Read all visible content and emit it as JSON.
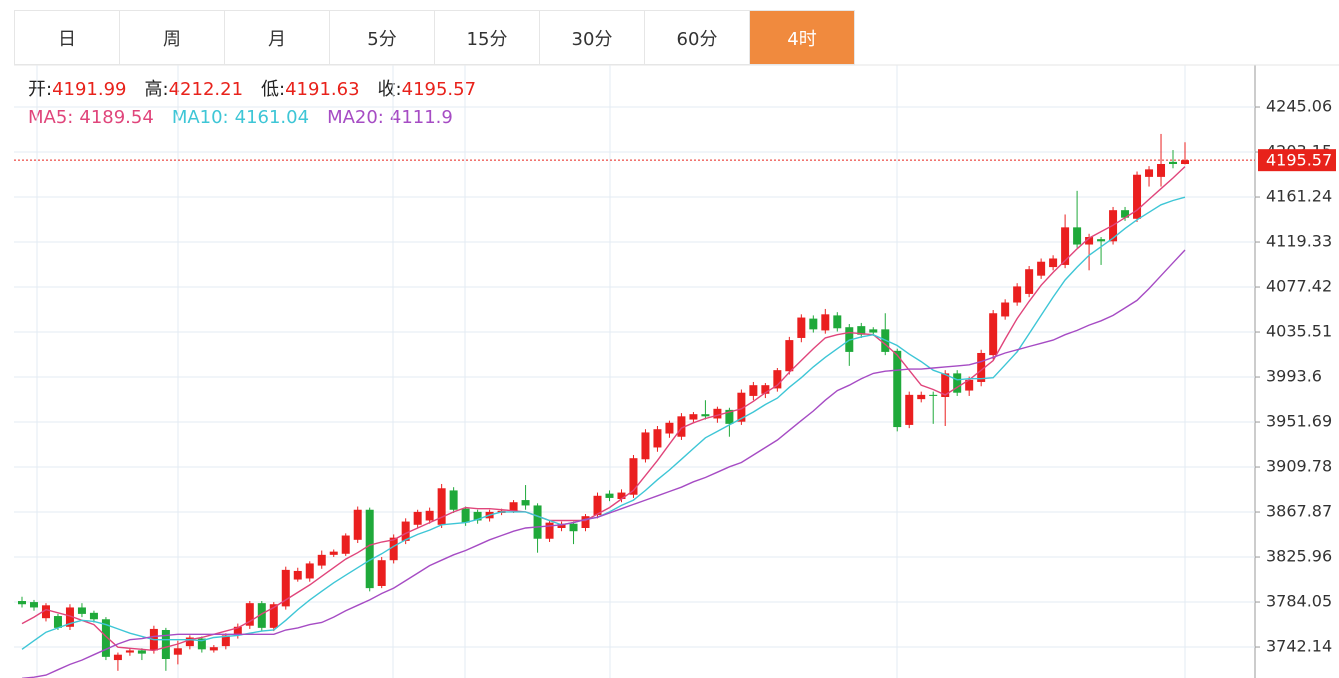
{
  "tabs": [
    "日",
    "周",
    "月",
    "5分",
    "15分",
    "30分",
    "60分",
    "4时"
  ],
  "active_tab": 7,
  "chart_data": {
    "type": "candlestick",
    "ohlc_labels": [
      "开:",
      "高:",
      "低:",
      "收:"
    ],
    "open": [
      3785,
      3784,
      3769,
      3771,
      3761,
      3779,
      3774,
      3768,
      3730,
      3737,
      3739,
      3739,
      3758,
      3735,
      3743,
      3750,
      3739,
      3743,
      3753,
      3762,
      3783,
      3760,
      3780,
      3805,
      3806,
      3818,
      3828,
      3829,
      3842,
      3870,
      3799,
      3823,
      3841,
      3856,
      3860,
      3856,
      3888,
      3871,
      3868,
      3862,
      3867,
      3869,
      3879,
      3874,
      3843,
      3853,
      3857,
      3853,
      3865,
      3885,
      3880,
      3884,
      3917,
      3928,
      3941,
      3938,
      3954,
      3959,
      3955,
      3963,
      3952,
      3976,
      3978,
      3983,
      3999,
      4030,
      4048,
      4037,
      4051,
      4040,
      4041,
      4038,
      4038,
      4018,
      3949,
      3973,
      3977,
      3975,
      3997,
      3981,
      3989,
      4014,
      4050,
      4063,
      4071,
      4088,
      4096,
      4098,
      4133,
      4117,
      4122,
      4120,
      4149,
      4141,
      4180,
      4180,
      4194,
      4191.99
    ],
    "high": [
      3789,
      3786,
      3783,
      3773,
      3782,
      3783,
      3776,
      3770,
      3737,
      3741,
      3741,
      3762,
      3760,
      3748,
      3753,
      3752,
      3744,
      3755,
      3764,
      3785,
      3785,
      3784,
      3817,
      3816,
      3822,
      3832,
      3833,
      3848,
      3873,
      3872,
      3826,
      3847,
      3862,
      3870,
      3872,
      3894,
      3891,
      3873,
      3870,
      3870,
      3871,
      3879,
      3893,
      3876,
      3860,
      3859,
      3859,
      3866,
      3886,
      3888,
      3889,
      3921,
      3945,
      3948,
      3953,
      3960,
      3961,
      3972,
      3966,
      3965,
      3982,
      3989,
      3988,
      4002,
      4031,
      4052,
      4051,
      4057,
      4054,
      4043,
      4044,
      4040,
      4053,
      4020,
      3980,
      3980,
      3980,
      4000,
      4000,
      3994,
      4019,
      4056,
      4066,
      4081,
      4097,
      4104,
      4107,
      4145,
      4167,
      4127,
      4124,
      4152,
      4152,
      4185,
      4190,
      4220,
      4205,
      4212.21
    ],
    "low": [
      3779,
      3776,
      3766,
      3758,
      3758,
      3770,
      3765,
      3730,
      3720,
      3734,
      3730,
      3736,
      3720,
      3726,
      3740,
      3737,
      3737,
      3740,
      3750,
      3759,
      3757,
      3757,
      3777,
      3803,
      3803,
      3815,
      3826,
      3827,
      3839,
      3794,
      3797,
      3820,
      3838,
      3853,
      3857,
      3853,
      3867,
      3855,
      3857,
      3859,
      3865,
      3867,
      3870,
      3830,
      3840,
      3850,
      3838,
      3850,
      3862,
      3878,
      3877,
      3881,
      3914,
      3924,
      3937,
      3935,
      3951,
      3954,
      3951,
      3938,
      3949,
      3972,
      3974,
      3980,
      3996,
      4026,
      4035,
      4034,
      4036,
      4004,
      4030,
      4032,
      4014,
      3943,
      3946,
      3970,
      3950,
      3948,
      3976,
      3976,
      3985,
      4010,
      4047,
      4060,
      4068,
      4085,
      4093,
      4095,
      4114,
      4093,
      4098,
      4117,
      4139,
      4138,
      4171,
      4171,
      4188,
      4191.63
    ],
    "close": [
      3782,
      3779,
      3781,
      3760,
      3779,
      3773,
      3768,
      3733,
      3735,
      3739,
      3736,
      3759,
      3731,
      3741,
      3751,
      3740,
      3742,
      3753,
      3761,
      3783,
      3760,
      3782,
      3814,
      3813,
      3820,
      3828,
      3831,
      3846,
      3870,
      3797,
      3823,
      3844,
      3859,
      3868,
      3869,
      3890,
      3870,
      3858,
      3860,
      3868,
      3869,
      3877,
      3874,
      3843,
      3858,
      3857,
      3850,
      3864,
      3883,
      3881,
      3886,
      3918,
      3942,
      3945,
      3951,
      3957,
      3959,
      3957,
      3964,
      3950,
      3979,
      3986,
      3986,
      4000,
      4028,
      4049,
      4038,
      4052,
      4039,
      4017,
      4033,
      4035,
      4017,
      3947,
      3977,
      3977,
      3976,
      3997,
      3979,
      3991,
      4016,
      4053,
      4063,
      4078,
      4094,
      4101,
      4104,
      4133,
      4117,
      4124,
      4120,
      4149,
      4142,
      4182,
      4187,
      4192,
      4192,
      4195.57
    ],
    "up_color": "#ea1f1f",
    "down_color": "#1fa93a",
    "price_line_color": "#e8221b",
    "series": [
      {
        "name": "MA5:",
        "color": "#e0457b",
        "values": [
          3764,
          3770,
          3777,
          3774,
          3771,
          3767,
          3763,
          3752,
          3742,
          3741,
          3740,
          3739,
          3742,
          3745,
          3749,
          3751,
          3754,
          3757,
          3760,
          3766,
          3773,
          3779,
          3786,
          3793,
          3800,
          3808,
          3816,
          3824,
          3830,
          3837,
          3840,
          3842,
          3848,
          3853,
          3858,
          3863,
          3868,
          3872,
          3871,
          3871,
          3870,
          3869,
          3868,
          3864,
          3860,
          3860,
          3860,
          3860,
          3866,
          3872,
          3880,
          3888,
          3902,
          3916,
          3931,
          3946,
          3951,
          3955,
          3958,
          3961,
          3964,
          3971,
          3979,
          3986,
          3998,
          4009,
          4020,
          4030,
          4033,
          4035,
          4034,
          4033,
          4024,
          4014,
          4000,
          3986,
          3982,
          3977,
          3984,
          3991,
          4000,
          4009,
          4029,
          4048,
          4064,
          4079,
          4091,
          4102,
          4113,
          4123,
          4129,
          4135,
          4142,
          4149,
          4159,
          4169,
          4179,
          4189.54
        ]
      },
      {
        "name": "MA10:",
        "color": "#3ec6d6",
        "values": [
          3740,
          3748,
          3756,
          3760,
          3764,
          3767,
          3766,
          3763,
          3759,
          3755,
          3752,
          3749,
          3749,
          3749,
          3749,
          3748,
          3751,
          3752,
          3753,
          3755,
          3757,
          3758,
          3767,
          3777,
          3786,
          3794,
          3802,
          3809,
          3816,
          3823,
          3829,
          3836,
          3842,
          3847,
          3851,
          3856,
          3857,
          3858,
          3861,
          3865,
          3868,
          3868,
          3868,
          3864,
          3860,
          3856,
          3858,
          3861,
          3863,
          3868,
          3874,
          3879,
          3888,
          3898,
          3907,
          3917,
          3927,
          3937,
          3943,
          3949,
          3955,
          3961,
          3968,
          3974,
          3984,
          3993,
          4003,
          4012,
          4020,
          4028,
          4031,
          4033,
          4028,
          4023,
          4015,
          4008,
          4000,
          3996,
          3991,
          3992,
          3992,
          3993,
          4005,
          4017,
          4034,
          4051,
          4068,
          4084,
          4096,
          4107,
          4115,
          4123,
          4132,
          4140,
          4147,
          4154,
          4158,
          4161.04
        ]
      },
      {
        "name": "MA20:",
        "color": "#a64cc4",
        "values": [
          3713,
          3714,
          3716,
          3721,
          3726,
          3730,
          3735,
          3740,
          3745,
          3749,
          3750,
          3752,
          3753,
          3754,
          3754,
          3754,
          3754,
          3754,
          3754,
          3754,
          3754,
          3754,
          3758,
          3760,
          3763,
          3765,
          3770,
          3776,
          3781,
          3786,
          3792,
          3797,
          3804,
          3811,
          3818,
          3823,
          3828,
          3832,
          3837,
          3842,
          3846,
          3850,
          3853,
          3854,
          3855,
          3856,
          3858,
          3861,
          3863,
          3867,
          3871,
          3875,
          3879,
          3883,
          3887,
          3891,
          3896,
          3900,
          3905,
          3910,
          3914,
          3921,
          3928,
          3935,
          3944,
          3953,
          3962,
          3972,
          3981,
          3986,
          3992,
          3997,
          3999,
          4000,
          4001,
          4001,
          4002,
          4003,
          4004,
          4005,
          4008,
          4012,
          4016,
          4019,
          4022,
          4025,
          4028,
          4033,
          4037,
          4042,
          4046,
          4051,
          4058,
          4065,
          4076,
          4088,
          4100,
          4111.9
        ]
      }
    ],
    "ylim": [
      3713.3,
      4284.2
    ],
    "yticks": [
      3742.14,
      3784.05,
      3825.96,
      3867.87,
      3909.78,
      3951.69,
      3993.6,
      4035.51,
      4077.42,
      4119.33,
      4161.24,
      4203.15,
      4245.06
    ],
    "grid": true
  }
}
